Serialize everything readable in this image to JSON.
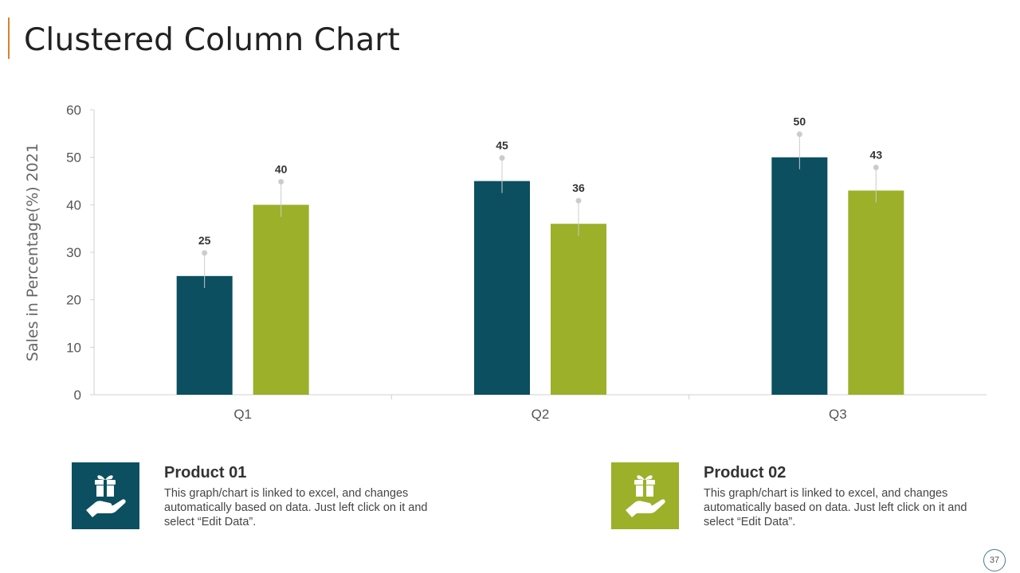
{
  "slide": {
    "title": "Clustered Column Chart",
    "page_number": "37"
  },
  "colors": {
    "accent": "#d9822b",
    "series1": "#0b4f60",
    "series2": "#9cb02a"
  },
  "chart_data": {
    "type": "bar",
    "categories": [
      "Q1",
      "Q2",
      "Q3"
    ],
    "series": [
      {
        "values": [
          25,
          45,
          50
        ]
      },
      {
        "values": [
          40,
          36,
          43
        ]
      }
    ],
    "ylabel": "Sales in Percentage(%) 2021",
    "ylim": [
      0,
      60
    ],
    "yticks": [
      "0",
      "10",
      "20",
      "30",
      "40",
      "50",
      "60"
    ],
    "data_labels": true,
    "grid": false
  },
  "products": [
    {
      "title": "Product 01",
      "description": "This graph/chart is linked to excel, and changes automatically based on data. Just left click on it and select “Edit Data”.",
      "icon": "gift-hand-icon"
    },
    {
      "title": "Product 02",
      "description": "This graph/chart is linked to excel, and changes automatically based on data. Just left click on it and select “Edit Data”.",
      "icon": "gift-hand-icon"
    }
  ]
}
